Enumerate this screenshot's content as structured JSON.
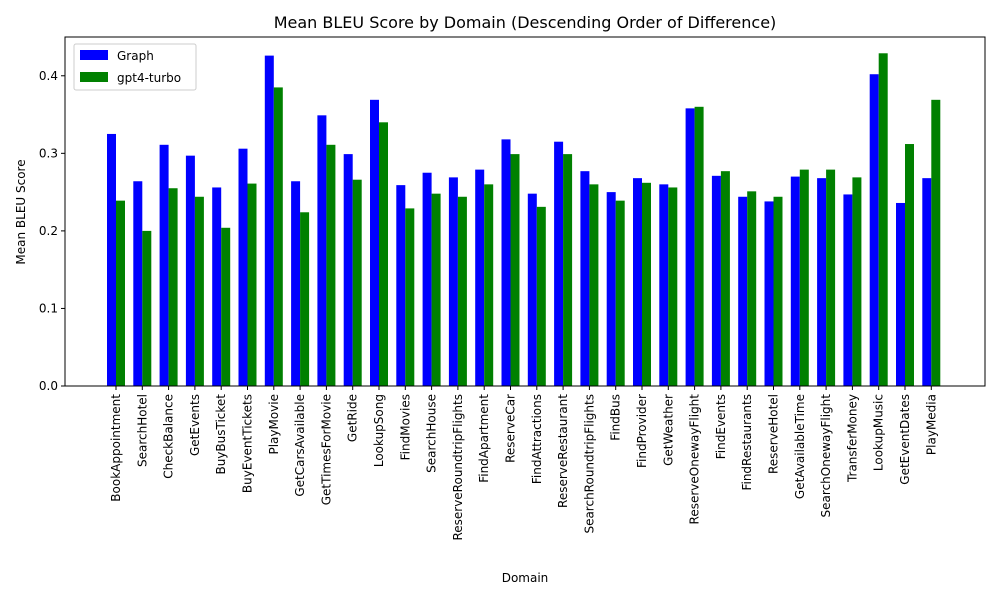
{
  "chart_data": {
    "type": "bar",
    "title": "Mean BLEU Score by Domain (Descending Order of Difference)",
    "xlabel": "Domain",
    "ylabel": "Mean BLEU Score",
    "ylim": [
      0,
      0.45
    ],
    "yticks": [
      "0.0",
      "0.1",
      "0.2",
      "0.3",
      "0.4"
    ],
    "legend_position": "top-left",
    "categories": [
      "BookAppointment",
      "SearchHotel",
      "CheckBalance",
      "GetEvents",
      "BuyBusTicket",
      "BuyEventTickets",
      "PlayMovie",
      "GetCarsAvailable",
      "GetTimesForMovie",
      "GetRide",
      "LookupSong",
      "FindMovies",
      "SearchHouse",
      "ReserveRoundtripFlights",
      "FindApartment",
      "ReserveCar",
      "FindAttractions",
      "ReserveRestaurant",
      "SearchRoundtripFlights",
      "FindBus",
      "FindProvider",
      "GetWeather",
      "ReserveOnewayFlight",
      "FindEvents",
      "FindRestaurants",
      "ReserveHotel",
      "GetAvailableTime",
      "SearchOnewayFlight",
      "TransferMoney",
      "LookupMusic",
      "GetEventDates",
      "PlayMedia"
    ],
    "series": [
      {
        "name": "Graph",
        "color": "#0000ff",
        "values": [
          0.325,
          0.264,
          0.311,
          0.297,
          0.256,
          0.306,
          0.426,
          0.264,
          0.349,
          0.299,
          0.369,
          0.259,
          0.275,
          0.269,
          0.279,
          0.318,
          0.248,
          0.315,
          0.277,
          0.25,
          0.268,
          0.26,
          0.358,
          0.271,
          0.244,
          0.238,
          0.27,
          0.268,
          0.247,
          0.402,
          0.236,
          0.268
        ]
      },
      {
        "name": "gpt4-turbo",
        "color": "#008000",
        "values": [
          0.239,
          0.2,
          0.255,
          0.244,
          0.204,
          0.261,
          0.385,
          0.224,
          0.311,
          0.266,
          0.34,
          0.229,
          0.248,
          0.244,
          0.26,
          0.299,
          0.231,
          0.299,
          0.26,
          0.239,
          0.262,
          0.256,
          0.36,
          0.277,
          0.251,
          0.244,
          0.279,
          0.279,
          0.269,
          0.429,
          0.312,
          0.369
        ]
      }
    ]
  }
}
